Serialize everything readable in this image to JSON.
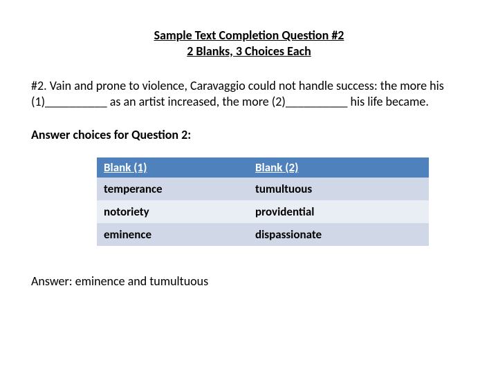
{
  "title": {
    "line1": "Sample Text Completion Question #2",
    "line2": "2 Blanks, 3 Choices Each"
  },
  "question_text": "#2. Vain and prone to violence, Caravaggio could not handle success: the more his (1)__________ as an artist increased, the more (2)__________ his life became.",
  "choices_heading": "Answer choices for Question 2:",
  "table": {
    "header_bg": "#4f81bd",
    "header_fg": "#ffffff",
    "row_alt_bg": "#d0d8e8",
    "row_plain_bg": "#e9edf4",
    "columns": [
      "Blank (1)",
      "Blank (2)"
    ],
    "rows": [
      [
        "temperance",
        "tumultuous"
      ],
      [
        "notoriety",
        "providential"
      ],
      [
        "eminence",
        "dispassionate"
      ]
    ]
  },
  "answer_line": "Answer: eminence and tumultuous"
}
